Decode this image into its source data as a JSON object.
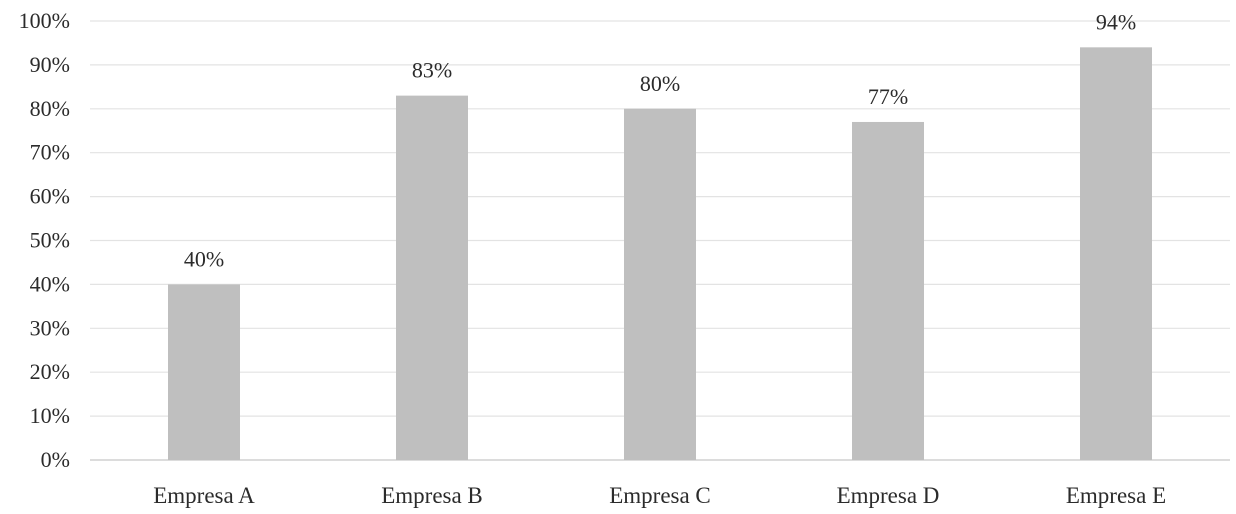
{
  "chart_data": {
    "type": "bar",
    "categories": [
      "Empresa A",
      "Empresa B",
      "Empresa C",
      "Empresa D",
      "Empresa E"
    ],
    "values": [
      40,
      83,
      80,
      77,
      94
    ],
    "value_labels": [
      "40%",
      "83%",
      "80%",
      "77%",
      "94%"
    ],
    "y_ticks": [
      "0%",
      "10%",
      "20%",
      "30%",
      "40%",
      "50%",
      "60%",
      "70%",
      "80%",
      "90%",
      "100%"
    ],
    "ylim": [
      0,
      100
    ],
    "title": "",
    "xlabel": "",
    "ylabel": "",
    "grid": true,
    "legend": "none",
    "colors": {
      "bar": "#bfbfbf",
      "grid": "#e3e3e3",
      "axis": "#d0d0d0",
      "text": "#2b2b2b"
    }
  }
}
